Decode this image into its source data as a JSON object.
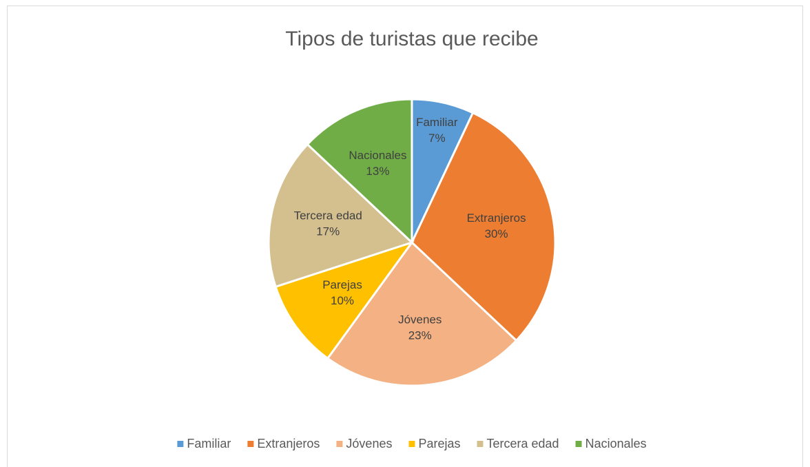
{
  "chart_data": {
    "type": "pie",
    "title": "Tipos de turistas que recibe",
    "categories": [
      "Familiar",
      "Extranjeros",
      "Jóvenes",
      "Parejas",
      "Tercera edad",
      "Nacionales"
    ],
    "values": [
      7,
      30,
      23,
      10,
      17,
      13
    ],
    "value_labels": [
      "7%",
      "30%",
      "23%",
      "10%",
      "17%",
      "13%"
    ],
    "colors": [
      "#5b9bd5",
      "#ed7d31",
      "#f4b183",
      "#ffc000",
      "#d4bf8f",
      "#70ad47"
    ],
    "legend": "bottom"
  }
}
